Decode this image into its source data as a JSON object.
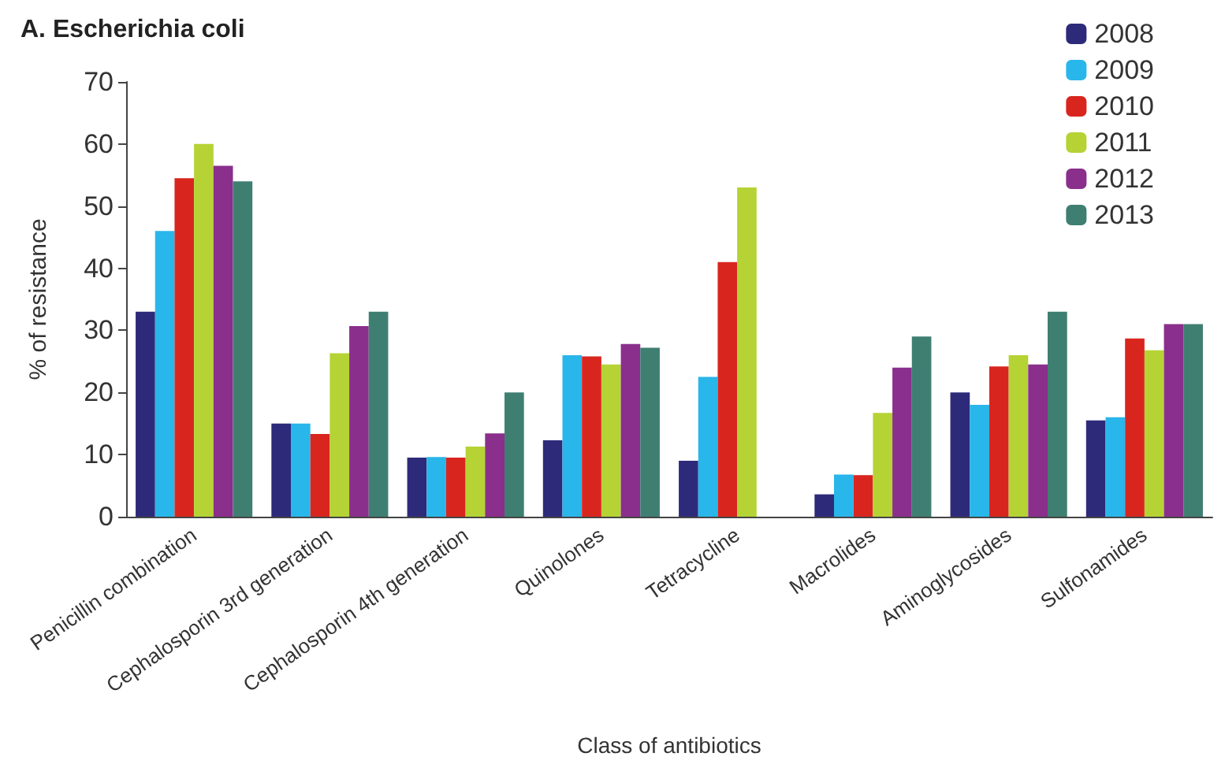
{
  "chart_data": {
    "type": "bar",
    "title": "A. Escherichia coli",
    "xlabel": "Class of antibiotics",
    "ylabel": "% of resistance",
    "categories": [
      "Penicillin combination",
      "Cephalosporin 3rd generation",
      "Cephalosporin 4th generation",
      "Quinolones",
      "Tetracycline",
      "Macrolides",
      "Aminoglycosides",
      "Sulfonamides"
    ],
    "series": [
      {
        "name": "2008",
        "color": "#2e2a7a",
        "values": [
          33,
          15,
          9.5,
          12.3,
          9,
          3.6,
          20,
          15.5
        ]
      },
      {
        "name": "2009",
        "color": "#29b6ea",
        "values": [
          46,
          15,
          9.6,
          26,
          22.5,
          6.8,
          18,
          16
        ]
      },
      {
        "name": "2010",
        "color": "#d8261f",
        "values": [
          54.5,
          13.3,
          9.5,
          25.8,
          41,
          6.7,
          24.2,
          28.7
        ]
      },
      {
        "name": "2011",
        "color": "#b5d334",
        "values": [
          60,
          26.3,
          11.3,
          24.5,
          53,
          16.7,
          26,
          26.8
        ]
      },
      {
        "name": "2012",
        "color": "#8a2f8c",
        "values": [
          56.5,
          30.7,
          13.4,
          27.8,
          null,
          24,
          24.5,
          31
        ]
      },
      {
        "name": "2013",
        "color": "#3f7f72",
        "values": [
          54,
          33,
          20,
          27.2,
          null,
          29,
          33,
          31
        ]
      }
    ],
    "ylim": [
      0,
      70
    ],
    "yticks": [
      0,
      10,
      20,
      30,
      40,
      50,
      60,
      70
    ],
    "grid": false,
    "legend": "top right"
  }
}
